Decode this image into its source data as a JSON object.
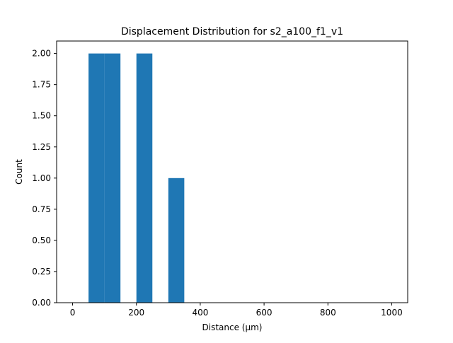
{
  "chart_data": {
    "type": "bar",
    "title": "Displacement Distribution for s2_a100_f1_v1",
    "xlabel": "Distance (μm)",
    "ylabel": "Count",
    "xlim": [
      -50,
      1050
    ],
    "ylim": [
      0,
      2.1
    ],
    "xticks": [
      0,
      200,
      400,
      600,
      800,
      1000
    ],
    "yticks": [
      0.0,
      0.25,
      0.5,
      0.75,
      1.0,
      1.25,
      1.5,
      1.75,
      2.0
    ],
    "bins": [
      {
        "x0": 50,
        "x1": 100,
        "count": 2
      },
      {
        "x0": 100,
        "x1": 150,
        "count": 2
      },
      {
        "x0": 150,
        "x1": 200,
        "count": 0
      },
      {
        "x0": 200,
        "x1": 250,
        "count": 2
      },
      {
        "x0": 250,
        "x1": 300,
        "count": 0
      },
      {
        "x0": 300,
        "x1": 350,
        "count": 1
      },
      {
        "x0": 350,
        "x1": 400,
        "count": 0
      },
      {
        "x0": 400,
        "x1": 450,
        "count": 0
      },
      {
        "x0": 450,
        "x1": 500,
        "count": 0
      },
      {
        "x0": 500,
        "x1": 550,
        "count": 0
      },
      {
        "x0": 550,
        "x1": 600,
        "count": 0
      },
      {
        "x0": 600,
        "x1": 650,
        "count": 0
      },
      {
        "x0": 650,
        "x1": 700,
        "count": 0
      },
      {
        "x0": 700,
        "x1": 750,
        "count": 0
      },
      {
        "x0": 750,
        "x1": 800,
        "count": 0
      },
      {
        "x0": 800,
        "x1": 850,
        "count": 0
      },
      {
        "x0": 850,
        "x1": 900,
        "count": 0
      },
      {
        "x0": 900,
        "x1": 950,
        "count": 0
      },
      {
        "x0": 950,
        "x1": 1000,
        "count": 0
      }
    ],
    "bar_color": "#1f77b4",
    "grid": false,
    "legend": "none"
  }
}
